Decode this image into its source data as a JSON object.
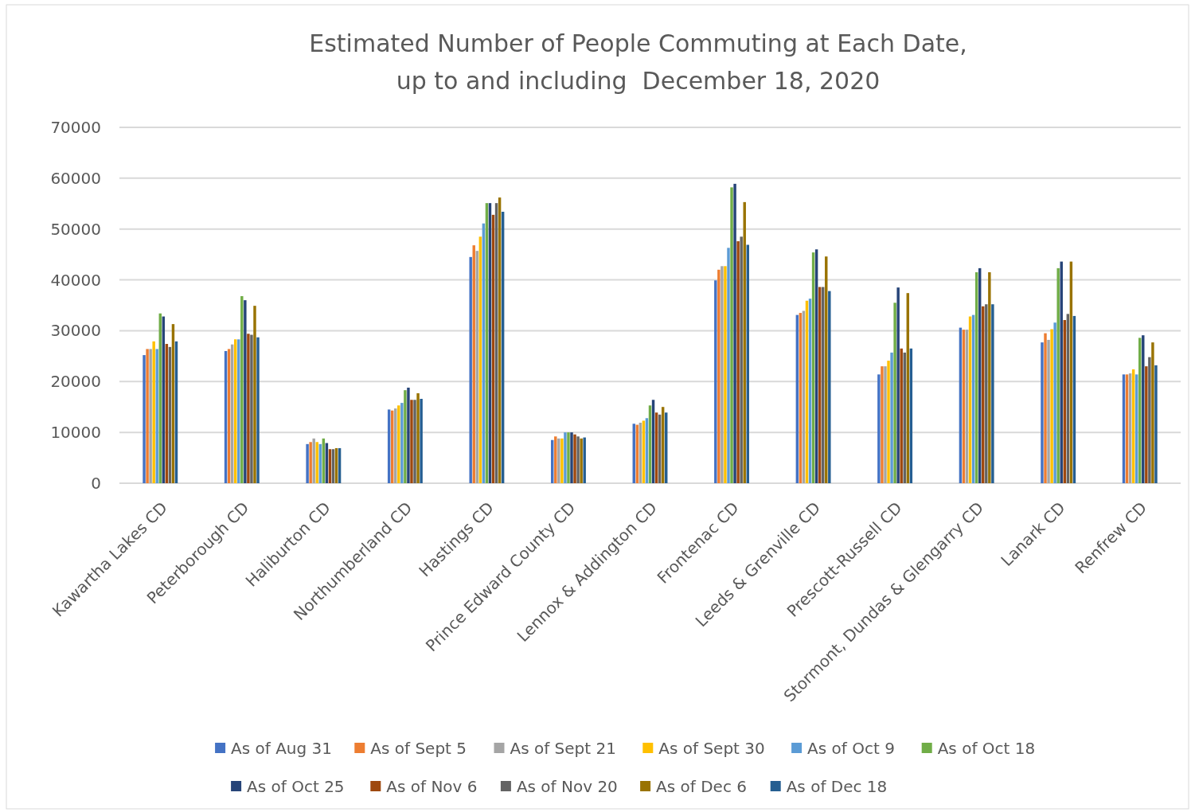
{
  "chart_data": {
    "type": "bar",
    "title": "Estimated Number of People Commuting at Each Date,\nup to and including  December 18, 2020",
    "categories": [
      "Kawartha Lakes CD",
      "Peterborough CD",
      "Haliburton CD",
      "Northumberland CD",
      "Hastings CD",
      "Prince Edward County CD",
      "Lennox & Addington CD",
      "Frontenac CD",
      "Leeds & Grenville CD",
      "Prescott-Russell CD",
      "Stormont, Dundas & Glengarry CD",
      "Lanark CD",
      "Renfrew CD"
    ],
    "series": [
      {
        "name": "As of Aug 31",
        "color": "#4472c4",
        "values": [
          25200,
          26000,
          7700,
          14500,
          44500,
          8500,
          11700,
          39900,
          33100,
          21400,
          30600,
          27700,
          21400
        ]
      },
      {
        "name": "As of Sept 5",
        "color": "#ed7d31",
        "values": [
          26400,
          26400,
          8100,
          14300,
          46800,
          9200,
          11500,
          42000,
          33500,
          23000,
          30200,
          29500,
          21400
        ]
      },
      {
        "name": "As of Sept 21",
        "color": "#a5a5a5",
        "values": [
          26400,
          27300,
          8800,
          14700,
          45700,
          8800,
          11900,
          42700,
          33900,
          23000,
          30200,
          28200,
          21600
        ]
      },
      {
        "name": "As of Sept 30",
        "color": "#ffc000",
        "values": [
          27900,
          28300,
          8100,
          15300,
          48500,
          8800,
          12300,
          42700,
          35900,
          24100,
          32800,
          30300,
          22400
        ]
      },
      {
        "name": "As of Oct 9",
        "color": "#5b9bd5",
        "values": [
          26400,
          28300,
          7700,
          15800,
          51100,
          10000,
          12800,
          46300,
          36300,
          25700,
          33100,
          31600,
          21400
        ]
      },
      {
        "name": "As of Oct 18",
        "color": "#70ad47",
        "values": [
          33400,
          36800,
          8800,
          18300,
          55100,
          10000,
          15300,
          58200,
          45400,
          35500,
          41500,
          42300,
          28600
        ]
      },
      {
        "name": "As of Oct 25",
        "color": "#264478",
        "values": [
          32800,
          36000,
          7900,
          18800,
          55100,
          10000,
          16400,
          58900,
          46000,
          38500,
          42300,
          43600,
          29100
        ]
      },
      {
        "name": "As of Nov 6",
        "color": "#9e480e",
        "values": [
          27400,
          29400,
          6700,
          16400,
          52800,
          9600,
          13900,
          47600,
          38600,
          26500,
          34800,
          32100,
          23000
        ]
      },
      {
        "name": "As of Nov 20",
        "color": "#636363",
        "values": [
          26800,
          29200,
          6700,
          16400,
          55100,
          9200,
          13500,
          48500,
          38600,
          25700,
          35200,
          33300,
          24800
        ]
      },
      {
        "name": "As of Dec 6",
        "color": "#997300",
        "values": [
          31300,
          34900,
          6900,
          17700,
          56200,
          8800,
          15000,
          55300,
          44600,
          37400,
          41500,
          43600,
          27700
        ]
      },
      {
        "name": "As of Dec 18",
        "color": "#255e91",
        "values": [
          27900,
          28700,
          6900,
          16600,
          53400,
          9000,
          13900,
          46900,
          37800,
          26500,
          35200,
          32900,
          23200
        ]
      }
    ],
    "ylim": [
      0,
      70000
    ],
    "yticks": [
      0,
      10000,
      20000,
      30000,
      40000,
      50000,
      60000,
      70000
    ],
    "grid": "y",
    "legend": "bottom"
  }
}
